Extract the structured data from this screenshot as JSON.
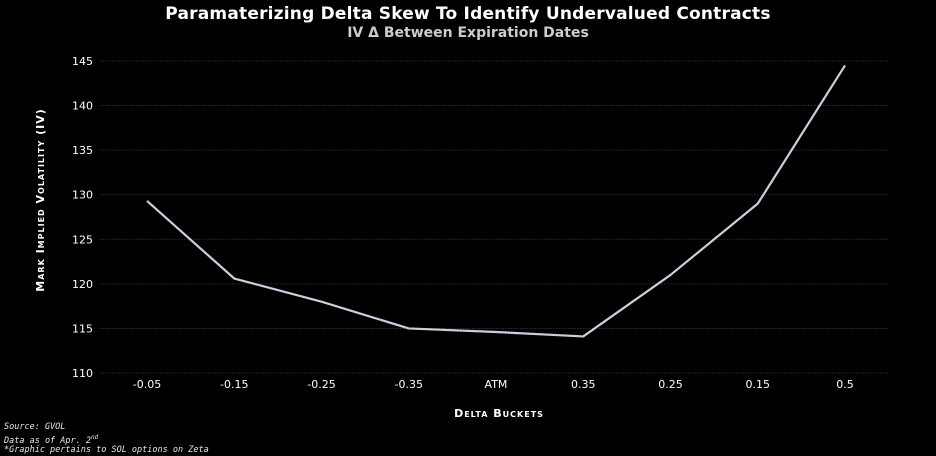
{
  "chart_data": {
    "type": "line",
    "title": "Paramaterizing Delta Skew To Identify Undervalued Contracts",
    "subtitle": "IV Δ Between Expiration Dates",
    "xlabel": "Delta Buckets",
    "ylabel": "Mark Implied Volatility (IV)",
    "categories": [
      "-0.05",
      "-0.15",
      "-0.25",
      "-0.35",
      "ATM",
      "0.35",
      "0.25",
      "0.15",
      "0.5"
    ],
    "series": [
      {
        "values": [
          129.3,
          120.6,
          118.0,
          115.0,
          114.6,
          114.1,
          121.0,
          129.0,
          144.5
        ]
      }
    ],
    "yticks": [
      110,
      115,
      120,
      125,
      130,
      135,
      140,
      145
    ],
    "ylim": [
      110,
      145
    ],
    "grid": true,
    "line_color": "#c8d0db"
  },
  "footnote": {
    "source": "Source: GVOL",
    "date_prefix": "Data as of Apr. 2",
    "date_suffix": "nd",
    "note": "*Graphic pertains to SOL options on Zeta"
  }
}
